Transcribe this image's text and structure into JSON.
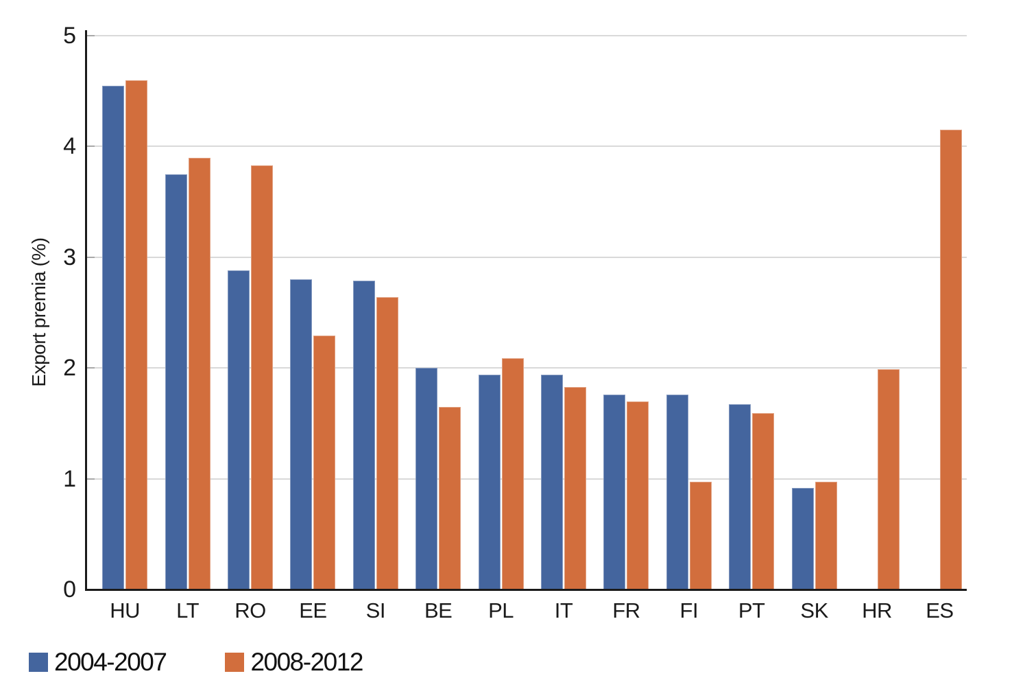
{
  "chart_data": {
    "type": "bar",
    "title": "",
    "xlabel": "",
    "ylabel": "Export premia (%)",
    "categories": [
      "HU",
      "LT",
      "RO",
      "EE",
      "SI",
      "BE",
      "PL",
      "IT",
      "FR",
      "FI",
      "PT",
      "SK",
      "HR",
      "ES"
    ],
    "series": [
      {
        "name": "2004-2007",
        "color": "#44659e",
        "values": [
          4.55,
          3.75,
          2.88,
          2.8,
          2.79,
          2.0,
          1.94,
          1.94,
          1.76,
          1.76,
          1.67,
          0.92,
          null,
          null
        ]
      },
      {
        "name": "2008-2012",
        "color": "#d26e3d",
        "values": [
          4.6,
          3.9,
          3.83,
          2.29,
          2.64,
          1.65,
          2.09,
          1.83,
          1.7,
          0.97,
          1.59,
          0.97,
          1.99,
          4.15
        ]
      }
    ],
    "yticks": [
      0,
      1,
      2,
      3,
      4,
      5
    ],
    "ylim": [
      0,
      5
    ],
    "grid": true,
    "legend_position": "bottom-left"
  },
  "colors": {
    "gridline": "#d9d9d9",
    "axis": "#1a1a1a",
    "text": "#1a1a1a",
    "background": "#ffffff"
  }
}
